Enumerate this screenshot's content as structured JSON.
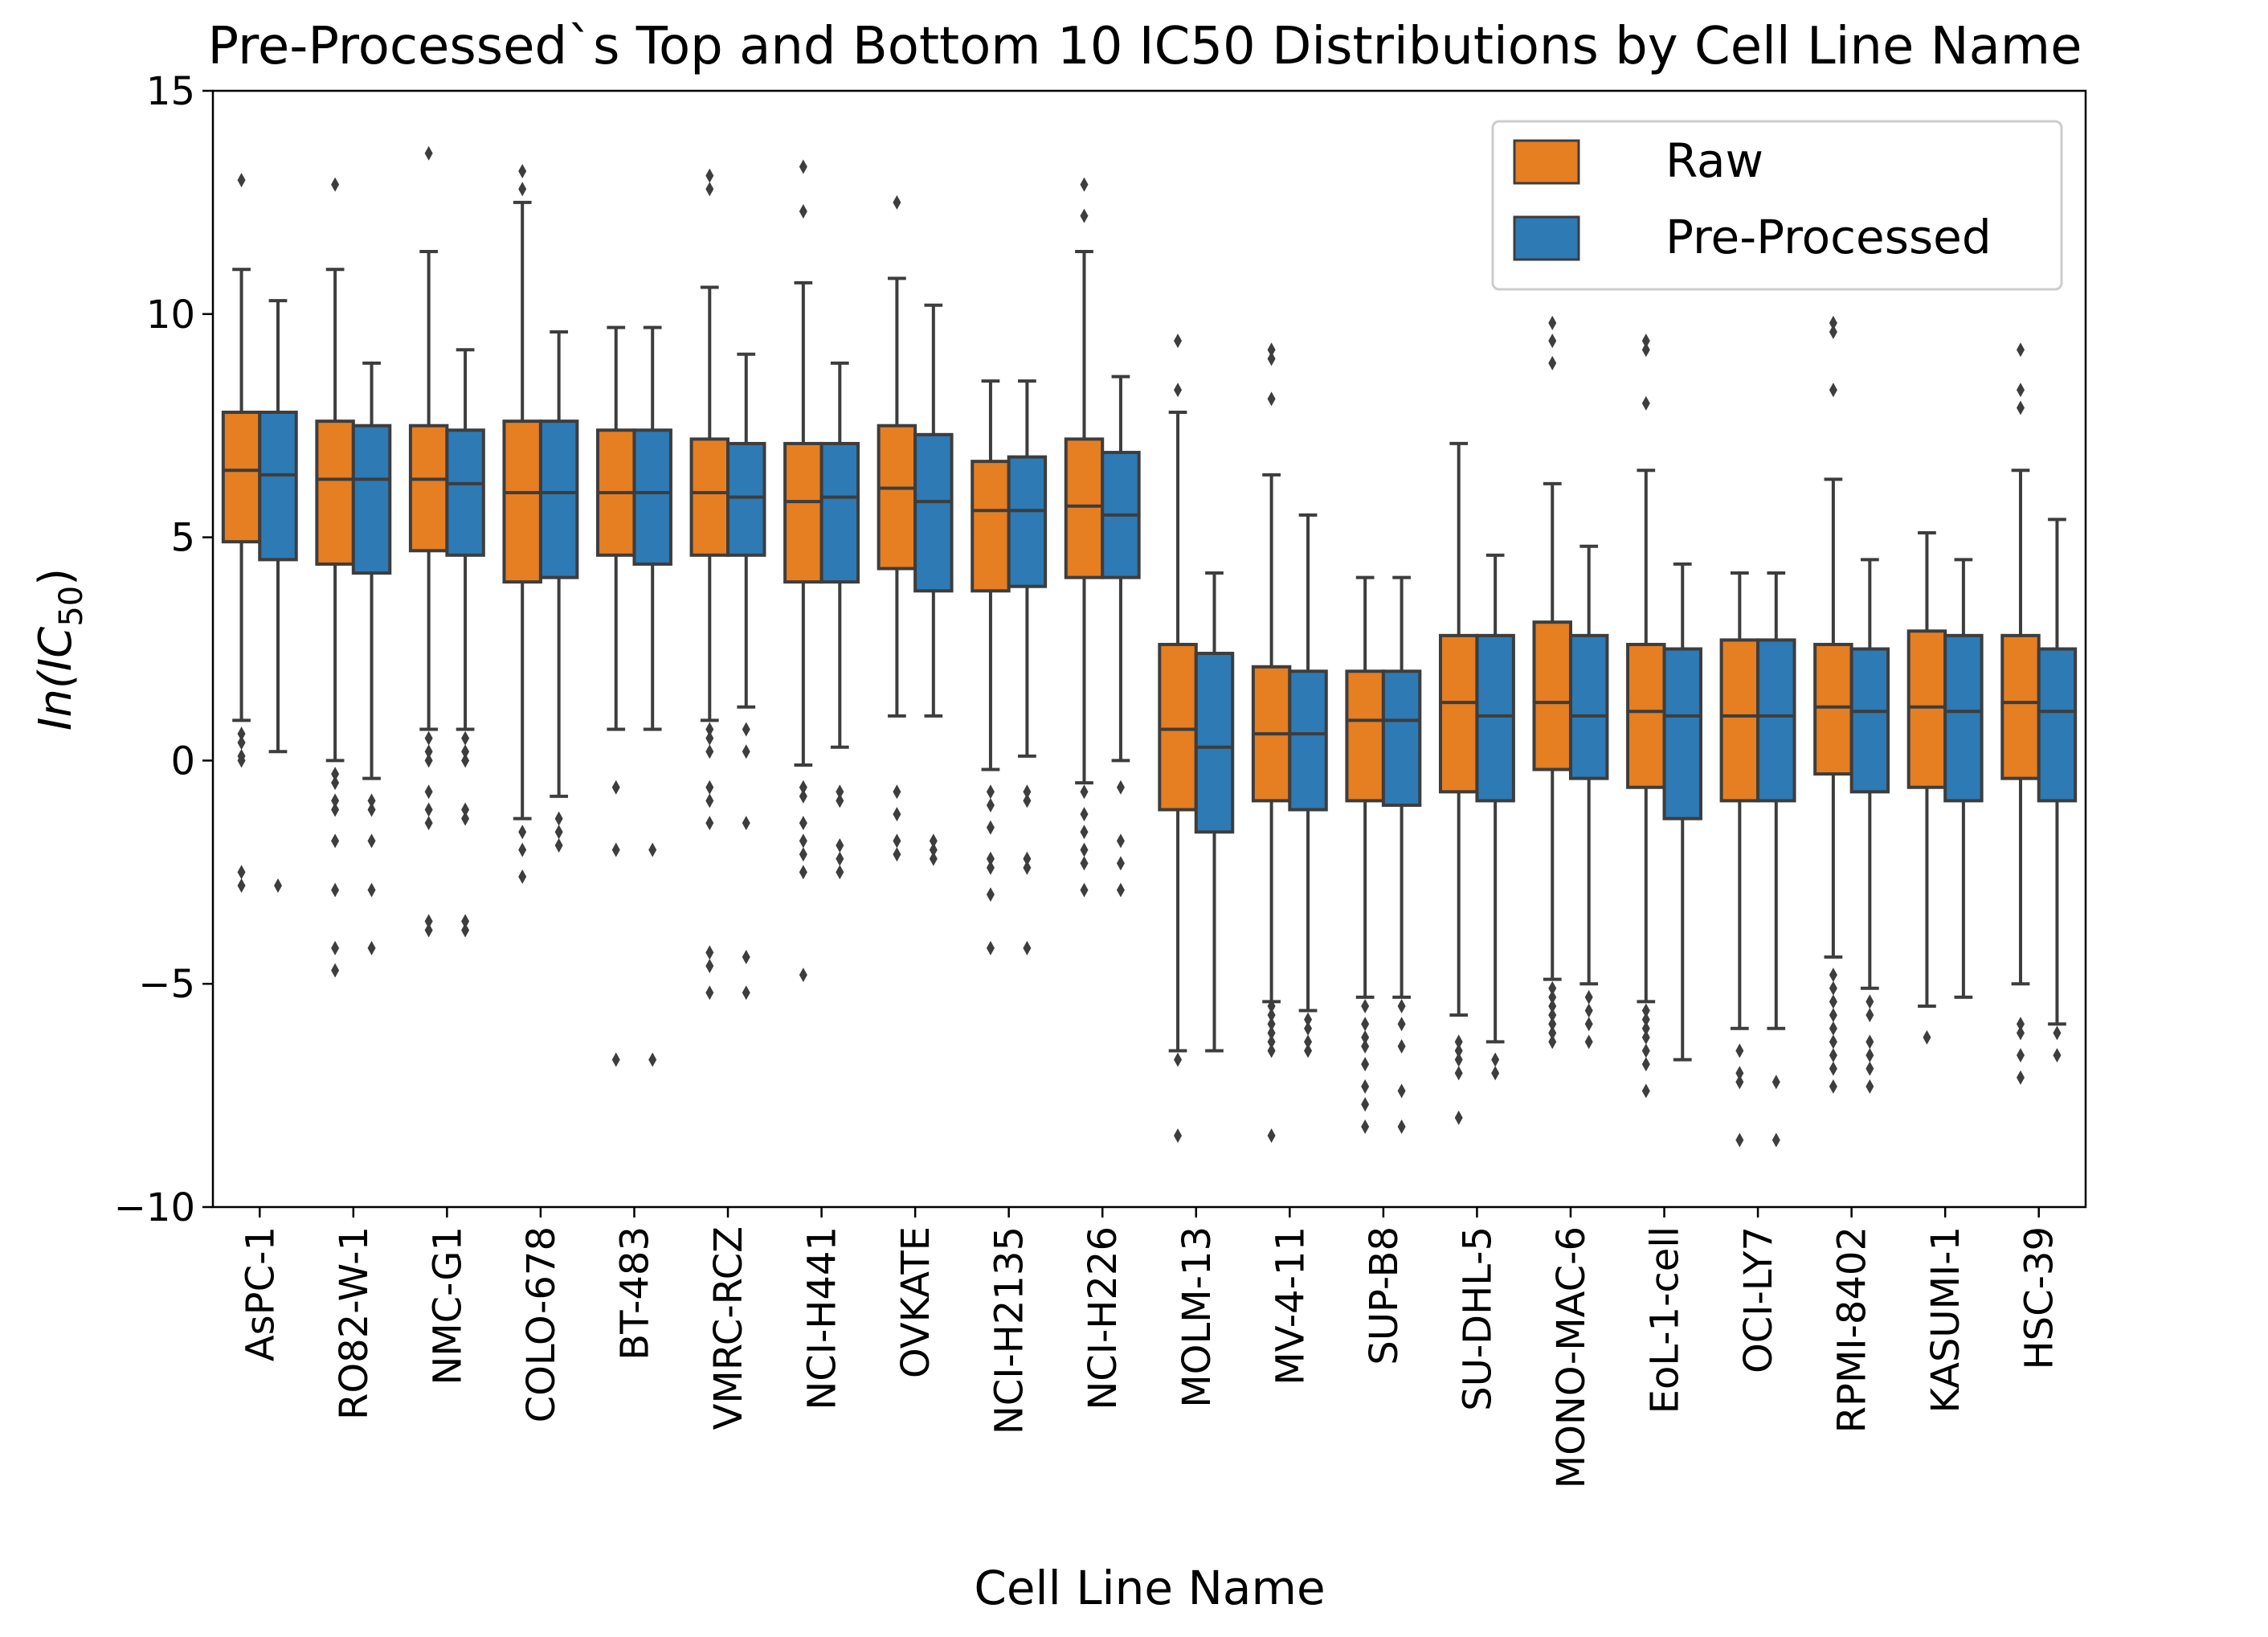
{
  "chart_data": {
    "type": "box",
    "title": "Pre-Processed`s Top and Bottom 10 IC50 Distributions by Cell Line Name",
    "xlabel": "Cell Line Name",
    "ylabel": "ln(IC50)",
    "ylabel_parts": {
      "base": "In(IC",
      "sub": "50",
      "close": ")"
    },
    "ylim": [
      -10,
      15
    ],
    "yticks": [
      -10,
      -5,
      0,
      5,
      10,
      15
    ],
    "ytick_labels": [
      "−10",
      "−5",
      "0",
      "5",
      "10",
      "15"
    ],
    "grid": false,
    "legend_position": "top-right",
    "colors": {
      "Raw": "#e67e22",
      "Pre-Processed": "#2d7ab5",
      "line": "#3d3d3d",
      "flier": "#3d3d3d"
    },
    "categories": [
      "AsPC-1",
      "RO82-W-1",
      "NMC-G1",
      "COLO-678",
      "BT-483",
      "VMRC-RCZ",
      "NCI-H441",
      "OVKATE",
      "NCI-H2135",
      "NCI-H226",
      "MOLM-13",
      "MV-4-11",
      "SUP-B8",
      "SU-DHL-5",
      "MONO-MAC-6",
      "EoL-1-cell",
      "OCI-LY7",
      "RPMI-8402",
      "KASUMI-1",
      "HSC-39"
    ],
    "series": [
      {
        "name": "Raw",
        "color": "#e67e22",
        "boxes": [
          {
            "whislo": 0.9,
            "q1": 4.9,
            "med": 6.5,
            "q3": 7.8,
            "whishi": 11.0,
            "fliers": [
              13.0,
              0.6,
              0.4,
              0.1,
              0.0,
              -2.5,
              -2.8
            ]
          },
          {
            "whislo": 0.0,
            "q1": 4.4,
            "med": 6.3,
            "q3": 7.6,
            "whishi": 11.0,
            "fliers": [
              12.9,
              -0.3,
              -0.5,
              -0.9,
              -1.1,
              -1.8,
              -2.9,
              -4.2,
              -4.7
            ]
          },
          {
            "whislo": 0.7,
            "q1": 4.7,
            "med": 6.3,
            "q3": 7.5,
            "whishi": 11.4,
            "fliers": [
              13.6,
              0.5,
              0.2,
              0.0,
              -0.7,
              -1.1,
              -1.4,
              -3.6,
              -3.8
            ]
          },
          {
            "whislo": -1.3,
            "q1": 4.0,
            "med": 6.0,
            "q3": 7.6,
            "whishi": 12.5,
            "fliers": [
              13.2,
              12.8,
              -1.6,
              -2.0,
              -2.6
            ]
          },
          {
            "whislo": 0.7,
            "q1": 4.6,
            "med": 6.0,
            "q3": 7.4,
            "whishi": 9.7,
            "fliers": [
              -0.6,
              -2.0,
              -6.7
            ]
          },
          {
            "whislo": 0.9,
            "q1": 4.6,
            "med": 6.0,
            "q3": 7.2,
            "whishi": 10.6,
            "fliers": [
              13.1,
              12.8,
              0.7,
              0.5,
              0.2,
              -0.6,
              -0.9,
              -1.4,
              -4.3,
              -4.6,
              -5.2
            ]
          },
          {
            "whislo": -0.1,
            "q1": 4.0,
            "med": 5.8,
            "q3": 7.1,
            "whishi": 10.7,
            "fliers": [
              13.3,
              12.3,
              -0.6,
              -0.8,
              -1.4,
              -1.8,
              -2.1,
              -2.5,
              -4.8
            ]
          },
          {
            "whislo": 1.0,
            "q1": 4.3,
            "med": 6.1,
            "q3": 7.5,
            "whishi": 10.8,
            "fliers": [
              12.5,
              -0.7,
              -1.2,
              -1.8,
              -2.1
            ]
          },
          {
            "whislo": -0.2,
            "q1": 3.8,
            "med": 5.6,
            "q3": 6.7,
            "whishi": 8.5,
            "fliers": [
              -0.7,
              -1.0,
              -1.5,
              -2.2,
              -2.4,
              -3.0,
              -4.2
            ]
          },
          {
            "whislo": -0.5,
            "q1": 4.1,
            "med": 5.7,
            "q3": 7.2,
            "whishi": 11.4,
            "fliers": [
              12.9,
              12.2,
              -0.7,
              -1.2,
              -1.6,
              -2.0,
              -2.3,
              -2.9
            ]
          },
          {
            "whislo": -6.5,
            "q1": -1.1,
            "med": 0.7,
            "q3": 2.6,
            "whishi": 7.8,
            "fliers": [
              9.4,
              8.3,
              -6.7,
              -8.4
            ]
          },
          {
            "whislo": -5.4,
            "q1": -0.9,
            "med": 0.6,
            "q3": 2.1,
            "whishi": 6.4,
            "fliers": [
              9.2,
              9.0,
              8.1,
              -5.5,
              -5.7,
              -5.9,
              -6.1,
              -6.3,
              -6.5,
              -8.4
            ]
          },
          {
            "whislo": -5.3,
            "q1": -0.9,
            "med": 0.9,
            "q3": 2.0,
            "whishi": 4.1,
            "fliers": [
              -5.5,
              -5.9,
              -6.2,
              -6.4,
              -6.8,
              -7.3,
              -7.7,
              -8.2
            ]
          },
          {
            "whislo": -5.7,
            "q1": -0.7,
            "med": 1.3,
            "q3": 2.8,
            "whishi": 7.1,
            "fliers": [
              -6.3,
              -6.5,
              -6.7,
              -7.0,
              -8.0
            ]
          },
          {
            "whislo": -4.9,
            "q1": -0.2,
            "med": 1.3,
            "q3": 3.1,
            "whishi": 6.2,
            "fliers": [
              9.8,
              9.4,
              8.9,
              -5.1,
              -5.3,
              -5.5,
              -5.7,
              -5.9,
              -6.1,
              -6.3
            ]
          },
          {
            "whislo": -5.4,
            "q1": -0.6,
            "med": 1.1,
            "q3": 2.6,
            "whishi": 6.5,
            "fliers": [
              9.4,
              9.2,
              8.0,
              -5.6,
              -5.8,
              -6.0,
              -6.2,
              -6.5,
              -6.8,
              -7.4
            ]
          },
          {
            "whislo": -6.0,
            "q1": -0.9,
            "med": 1.0,
            "q3": 2.7,
            "whishi": 4.2,
            "fliers": [
              -6.5,
              -7.0,
              -7.2,
              -8.5
            ]
          },
          {
            "whislo": -4.4,
            "q1": -0.3,
            "med": 1.2,
            "q3": 2.6,
            "whishi": 6.3,
            "fliers": [
              9.8,
              9.6,
              8.3,
              -4.8,
              -5.1,
              -5.4,
              -5.7,
              -6.0,
              -6.3,
              -6.6,
              -6.9,
              -7.3
            ]
          },
          {
            "whislo": -5.5,
            "q1": -0.6,
            "med": 1.2,
            "q3": 2.9,
            "whishi": 5.1,
            "fliers": [
              -6.2
            ]
          },
          {
            "whislo": -5.0,
            "q1": -0.4,
            "med": 1.3,
            "q3": 2.8,
            "whishi": 6.5,
            "fliers": [
              9.2,
              8.3,
              7.9,
              -5.9,
              -6.1,
              -6.6,
              -7.1
            ]
          }
        ]
      },
      {
        "name": "Pre-Processed",
        "color": "#2d7ab5",
        "boxes": [
          {
            "whislo": 0.2,
            "q1": 4.5,
            "med": 6.4,
            "q3": 7.8,
            "whishi": 10.3,
            "fliers": [
              -2.8
            ]
          },
          {
            "whislo": -0.4,
            "q1": 4.2,
            "med": 6.3,
            "q3": 7.5,
            "whishi": 8.9,
            "fliers": [
              -0.9,
              -1.1,
              -1.8,
              -2.9,
              -4.2
            ]
          },
          {
            "whislo": 0.7,
            "q1": 4.6,
            "med": 6.2,
            "q3": 7.4,
            "whishi": 9.2,
            "fliers": [
              0.5,
              0.2,
              0.0,
              -1.1,
              -1.3,
              -3.6,
              -3.8
            ]
          },
          {
            "whislo": -0.8,
            "q1": 4.1,
            "med": 6.0,
            "q3": 7.6,
            "whishi": 9.6,
            "fliers": [
              -1.3,
              -1.6,
              -1.9
            ]
          },
          {
            "whislo": 0.7,
            "q1": 4.4,
            "med": 6.0,
            "q3": 7.4,
            "whishi": 9.7,
            "fliers": [
              -2.0,
              -6.7
            ]
          },
          {
            "whislo": 1.2,
            "q1": 4.6,
            "med": 5.9,
            "q3": 7.1,
            "whishi": 9.1,
            "fliers": [
              0.7,
              0.2,
              -1.4,
              -4.4,
              -5.2
            ]
          },
          {
            "whislo": 0.3,
            "q1": 4.0,
            "med": 5.9,
            "q3": 7.1,
            "whishi": 8.9,
            "fliers": [
              -0.7,
              -0.9,
              -1.9,
              -2.2,
              -2.5
            ]
          },
          {
            "whislo": 1.0,
            "q1": 3.8,
            "med": 5.8,
            "q3": 7.3,
            "whishi": 10.2,
            "fliers": [
              -1.8,
              -2.0,
              -2.2
            ]
          },
          {
            "whislo": 0.1,
            "q1": 3.9,
            "med": 5.6,
            "q3": 6.8,
            "whishi": 8.5,
            "fliers": [
              -0.7,
              -0.9,
              -2.2,
              -2.4,
              -4.2
            ]
          },
          {
            "whislo": 0.0,
            "q1": 4.1,
            "med": 5.5,
            "q3": 6.9,
            "whishi": 8.6,
            "fliers": [
              -0.6,
              -1.8,
              -2.3,
              -2.9
            ]
          },
          {
            "whislo": -6.5,
            "q1": -1.6,
            "med": 0.3,
            "q3": 2.4,
            "whishi": 4.2,
            "fliers": []
          },
          {
            "whislo": -5.6,
            "q1": -1.1,
            "med": 0.6,
            "q3": 2.0,
            "whishi": 5.5,
            "fliers": [
              -5.8,
              -6.0,
              -6.3,
              -6.5
            ]
          },
          {
            "whislo": -5.3,
            "q1": -1.0,
            "med": 0.9,
            "q3": 2.0,
            "whishi": 4.1,
            "fliers": [
              -5.5,
              -5.9,
              -6.4,
              -7.4,
              -8.2
            ]
          },
          {
            "whislo": -6.3,
            "q1": -0.9,
            "med": 1.0,
            "q3": 2.8,
            "whishi": 4.6,
            "fliers": [
              -6.7,
              -7.0
            ]
          },
          {
            "whislo": -5.0,
            "q1": -0.4,
            "med": 1.0,
            "q3": 2.8,
            "whishi": 4.8,
            "fliers": [
              -5.3,
              -5.6,
              -5.9,
              -6.3
            ]
          },
          {
            "whislo": -6.7,
            "q1": -1.3,
            "med": 1.0,
            "q3": 2.5,
            "whishi": 4.4,
            "fliers": []
          },
          {
            "whislo": -6.0,
            "q1": -0.9,
            "med": 1.0,
            "q3": 2.7,
            "whishi": 4.2,
            "fliers": [
              -7.2,
              -8.5
            ]
          },
          {
            "whislo": -5.1,
            "q1": -0.7,
            "med": 1.1,
            "q3": 2.5,
            "whishi": 4.5,
            "fliers": [
              -5.4,
              -5.7,
              -6.3,
              -6.6,
              -6.9,
              -7.3
            ]
          },
          {
            "whislo": -5.3,
            "q1": -0.9,
            "med": 1.1,
            "q3": 2.8,
            "whishi": 4.5,
            "fliers": []
          },
          {
            "whislo": -5.9,
            "q1": -0.9,
            "med": 1.1,
            "q3": 2.5,
            "whishi": 5.4,
            "fliers": [
              -6.1,
              -6.6
            ]
          }
        ]
      }
    ]
  }
}
